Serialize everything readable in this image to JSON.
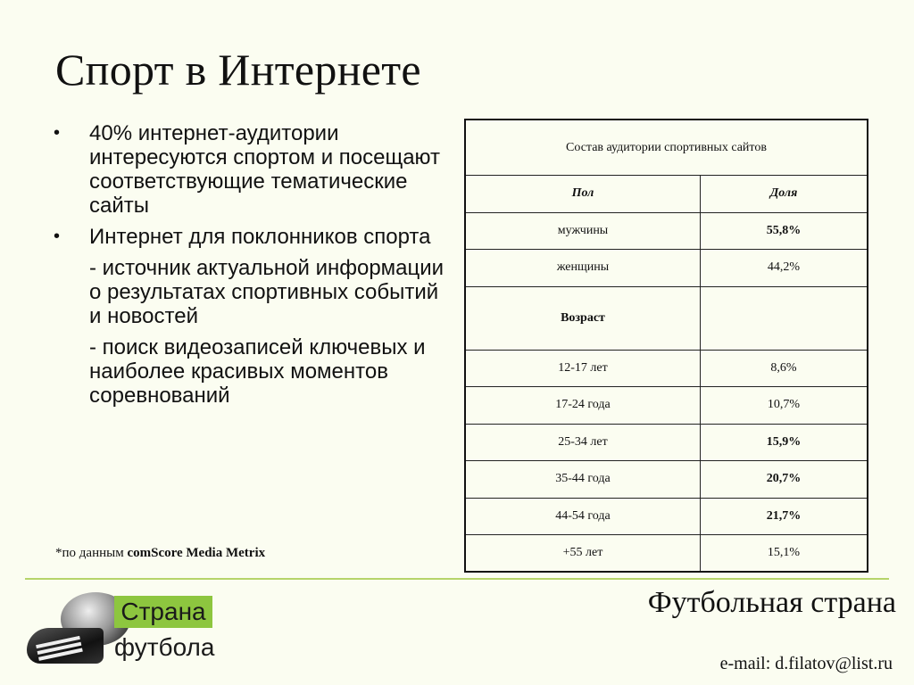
{
  "slide": {
    "title": "Спорт в Интернете",
    "bullets": [
      {
        "text": "40% интернет-аудитории интересуются спортом  и посещают соответствующие тематические сайты"
      },
      {
        "text": "Интернет для поклонников спорта"
      }
    ],
    "sub_points": [
      "- источник актуальной информации о результатах спортивных событий и новостей",
      "-  поиск видеозаписей ключевых и наиболее красивых моментов соревнований"
    ],
    "bullet_symbol": "•",
    "source_prefix": "*по данным ",
    "source_name": "comScore Media Metrix"
  },
  "table": {
    "caption": "Состав аудитории спортивных сайтов",
    "headers": [
      "Пол",
      "Доля"
    ],
    "gender_rows": [
      {
        "label": "мужчины",
        "value": "55,8%"
      },
      {
        "label": "женщины",
        "value": "44,2%"
      }
    ],
    "age_label": "Возраст",
    "age_rows": [
      {
        "label": "12-17 лет",
        "value": "8,6%"
      },
      {
        "label": "17-24 года",
        "value": "10,7%"
      },
      {
        "label": "25-34 лет",
        "value": "15,9%"
      },
      {
        "label": "35-44 года",
        "value": "20,7%"
      },
      {
        "label": "44-54 года",
        "value": "21,7%"
      },
      {
        "label": "+55 лет",
        "value": "15,1%"
      }
    ]
  },
  "footer": {
    "logo_line1": "Страна",
    "logo_line2": "футбола",
    "brand": "Футбольная страна",
    "email": "e-mail: d.filatov@list.ru",
    "accent_color": "#b6d46a",
    "logo_color": "#8dc63f"
  }
}
